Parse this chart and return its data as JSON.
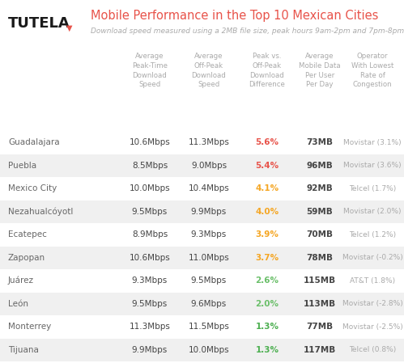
{
  "title": "Mobile Performance in the Top 10 Mexican Cities",
  "subtitle": "Download speed measured using a 2MB file size, peak hours 9am-2pm and 7pm-8pm",
  "col_headers": [
    "Average\nPeak-Time\nDownload\nSpeed",
    "Average\nOff-Peak\nDownload\nSpeed",
    "Peak vs.\nOff-Peak\nDownload\nDifference",
    "Average\nMobile Data\nPer User\nPer Day",
    "Operator\nWith Lowest\nRate of\nCongestion"
  ],
  "cities": [
    "Guadalajara",
    "Puebla",
    "Mexico City",
    "Nezahualcóyotl",
    "Ecatepec",
    "Zapopan",
    "Juárez",
    "León",
    "Monterrey",
    "Tijuana"
  ],
  "peak_speed": [
    "10.6Mbps",
    "8.5Mbps",
    "10.0Mbps",
    "9.5Mbps",
    "8.9Mbps",
    "10.6Mbps",
    "9.3Mbps",
    "9.5Mbps",
    "11.3Mbps",
    "9.9Mbps"
  ],
  "offpeak_speed": [
    "11.3Mbps",
    "9.0Mbps",
    "10.4Mbps",
    "9.9Mbps",
    "9.3Mbps",
    "11.0Mbps",
    "9.5Mbps",
    "9.6Mbps",
    "11.5Mbps",
    "10.0Mbps"
  ],
  "difference": [
    "5.6%",
    "5.4%",
    "4.1%",
    "4.0%",
    "3.9%",
    "3.7%",
    "2.6%",
    "2.0%",
    "1.3%",
    "1.3%"
  ],
  "diff_colors": [
    "#e8534a",
    "#e8534a",
    "#f5a623",
    "#f5a623",
    "#f5a623",
    "#f5a623",
    "#6abf69",
    "#6abf69",
    "#4caf50",
    "#4caf50"
  ],
  "mobile_data": [
    "73MB",
    "96MB",
    "92MB",
    "59MB",
    "70MB",
    "78MB",
    "115MB",
    "113MB",
    "77MB",
    "117MB"
  ],
  "operator": [
    "Movistar (3.1%)",
    "Movistar (3.6%)",
    "Telcel (1.7%)",
    "Movistar (2.0%)",
    "Telcel (1.2%)",
    "Movistar (-0.2%)",
    "AT&T (1.8%)",
    "Movistar (-2.8%)",
    "Movistar (-2.5%)",
    "Telcel (0.8%)"
  ],
  "shaded_rows": [
    1,
    3,
    5,
    7,
    9
  ],
  "bg_color": "#ffffff",
  "row_shade_color": "#f0f0f0",
  "city_color": "#666666",
  "data_color": "#444444",
  "header_color": "#aaaaaa",
  "tutela_color": "#1a1a1a",
  "title_color": "#e8534a",
  "subtitle_color": "#aaaaaa",
  "arrow_color": "#e8534a"
}
